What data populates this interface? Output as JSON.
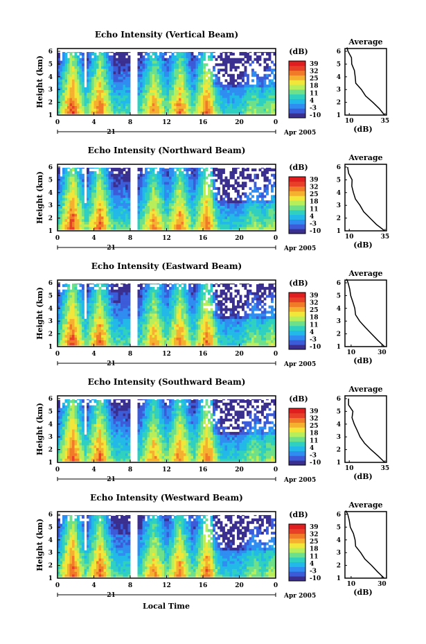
{
  "chart_data": [
    {
      "type": "heatmap",
      "title": "Echo Intensity (Vertical Beam)",
      "ylabel": "Height (km)",
      "xticks": [
        "0",
        "4",
        "8",
        "12",
        "16",
        "20",
        "0"
      ],
      "yticks": [
        "1",
        "2",
        "3",
        "4",
        "5",
        "6"
      ],
      "ylim": [
        1,
        6
      ],
      "date_tick": "21",
      "date_label": "Apr 2005",
      "colorbar": {
        "unit": "(dB)",
        "ticks": [
          "39",
          "32",
          "25",
          "18",
          "11",
          "4",
          "-3",
          "-10"
        ]
      },
      "profile": {
        "title": "Average",
        "xlabel": "(dB)",
        "xticks": [
          "10",
          "35"
        ],
        "yticks": [
          "1",
          "2",
          "3",
          "4",
          "5",
          "6"
        ],
        "x_range": [
          7,
          36
        ],
        "height": [
          1.0,
          1.5,
          2.0,
          2.5,
          3.0,
          3.5,
          4.0,
          4.5,
          5.0,
          5.5,
          6.0,
          6.3
        ],
        "db": [
          35,
          31,
          26,
          21,
          18,
          15,
          14,
          13,
          12,
          11,
          9,
          8
        ]
      }
    },
    {
      "type": "heatmap",
      "title": "Echo Intensity (Northward Beam)",
      "ylabel": "Height (km)",
      "xticks": [
        "0",
        "4",
        "8",
        "12",
        "16",
        "20",
        "0"
      ],
      "yticks": [
        "1",
        "2",
        "3",
        "4",
        "5",
        "6"
      ],
      "ylim": [
        1,
        6
      ],
      "date_tick": "21",
      "date_label": "Apr 2005",
      "colorbar": {
        "unit": "(dB)",
        "ticks": [
          "39",
          "32",
          "25",
          "18",
          "11",
          "4",
          "-3",
          "-10"
        ]
      },
      "profile": {
        "title": "Average",
        "xlabel": "(dB)",
        "xticks": [
          "10",
          "35"
        ],
        "yticks": [
          "1",
          "2",
          "3",
          "4",
          "5",
          "6"
        ],
        "x_range": [
          7,
          36
        ],
        "height": [
          1.0,
          1.5,
          2.0,
          2.5,
          3.0,
          3.5,
          4.0,
          4.5,
          5.0,
          5.5,
          6.0
        ],
        "db": [
          35,
          29,
          24,
          20,
          17,
          14,
          13,
          12,
          12,
          10,
          9
        ]
      }
    },
    {
      "type": "heatmap",
      "title": "Echo Intensity (Eastward Beam)",
      "ylabel": "Height (km)",
      "xticks": [
        "0",
        "4",
        "8",
        "12",
        "16",
        "20",
        "0"
      ],
      "yticks": [
        "1",
        "2",
        "3",
        "4",
        "5",
        "6"
      ],
      "ylim": [
        1,
        6
      ],
      "date_tick": "21",
      "date_label": "Apr 2005",
      "colorbar": {
        "unit": "(dB)",
        "ticks": [
          "39",
          "32",
          "25",
          "18",
          "11",
          "4",
          "-3",
          "-10"
        ]
      },
      "profile": {
        "title": "Average",
        "xlabel": "(dB)",
        "xticks": [
          "10",
          "30"
        ],
        "yticks": [
          "1",
          "2",
          "3",
          "4",
          "5",
          "6"
        ],
        "x_range": [
          6,
          33
        ],
        "height": [
          1.0,
          1.5,
          2.0,
          2.5,
          3.0,
          3.5,
          4.0,
          4.5,
          5.0,
          5.5,
          6.0,
          6.3
        ],
        "db": [
          32,
          27,
          23,
          19,
          16,
          13,
          12,
          11,
          10,
          9,
          8,
          7
        ]
      }
    },
    {
      "type": "heatmap",
      "title": "Echo Intensity (Southward Beam)",
      "ylabel": "Height (km)",
      "xticks": [
        "0",
        "4",
        "8",
        "12",
        "16",
        "20",
        "0"
      ],
      "yticks": [
        "1",
        "2",
        "3",
        "4",
        "5",
        "6"
      ],
      "ylim": [
        1,
        6
      ],
      "date_tick": "21",
      "date_label": "Apr 2005",
      "colorbar": {
        "unit": "(dB)",
        "ticks": [
          "39",
          "32",
          "25",
          "18",
          "11",
          "4",
          "-3",
          "-10"
        ]
      },
      "profile": {
        "title": "Average",
        "xlabel": "(dB)",
        "xticks": [
          "10",
          "35"
        ],
        "yticks": [
          "1",
          "2",
          "3",
          "4",
          "5",
          "6"
        ],
        "x_range": [
          7,
          36
        ],
        "height": [
          1.0,
          1.5,
          2.0,
          2.5,
          3.0,
          3.5,
          4.0,
          4.5,
          5.0,
          5.5,
          6.0
        ],
        "db": [
          35,
          30,
          25,
          21,
          17,
          15,
          13,
          12,
          12,
          10,
          9
        ]
      }
    },
    {
      "type": "heatmap",
      "title": "Echo Intensity (Westward Beam)",
      "ylabel": "Height (km)",
      "xticks": [
        "0",
        "4",
        "8",
        "12",
        "16",
        "20",
        "0"
      ],
      "yticks": [
        "1",
        "2",
        "3",
        "4",
        "5",
        "6"
      ],
      "ylim": [
        1,
        6
      ],
      "date_tick": "21",
      "date_label": "Apr 2005",
      "colorbar": {
        "unit": "(dB)",
        "ticks": [
          "39",
          "32",
          "25",
          "18",
          "11",
          "4",
          "-3",
          "-10"
        ]
      },
      "profile": {
        "title": "Average",
        "xlabel": "(dB)",
        "xticks": [
          "10",
          "30"
        ],
        "yticks": [
          "1",
          "2",
          "3",
          "4",
          "5",
          "6"
        ],
        "x_range": [
          6,
          33
        ],
        "height": [
          1.0,
          1.5,
          2.0,
          2.5,
          3.0,
          3.5,
          4.0,
          4.5,
          5.0,
          5.5,
          6.0,
          6.3
        ],
        "db": [
          32,
          27,
          23,
          19,
          16,
          13,
          12,
          11,
          10,
          9,
          8,
          7
        ]
      }
    }
  ],
  "xlabel": "Local Time",
  "colormap": [
    "#3a2f8f",
    "#3b5bd8",
    "#2f8cf0",
    "#22b8e8",
    "#30d0c0",
    "#6ee08a",
    "#b8ee5a",
    "#f2e63a",
    "#f6b030",
    "#f07a28",
    "#e84028",
    "#e01e20"
  ]
}
